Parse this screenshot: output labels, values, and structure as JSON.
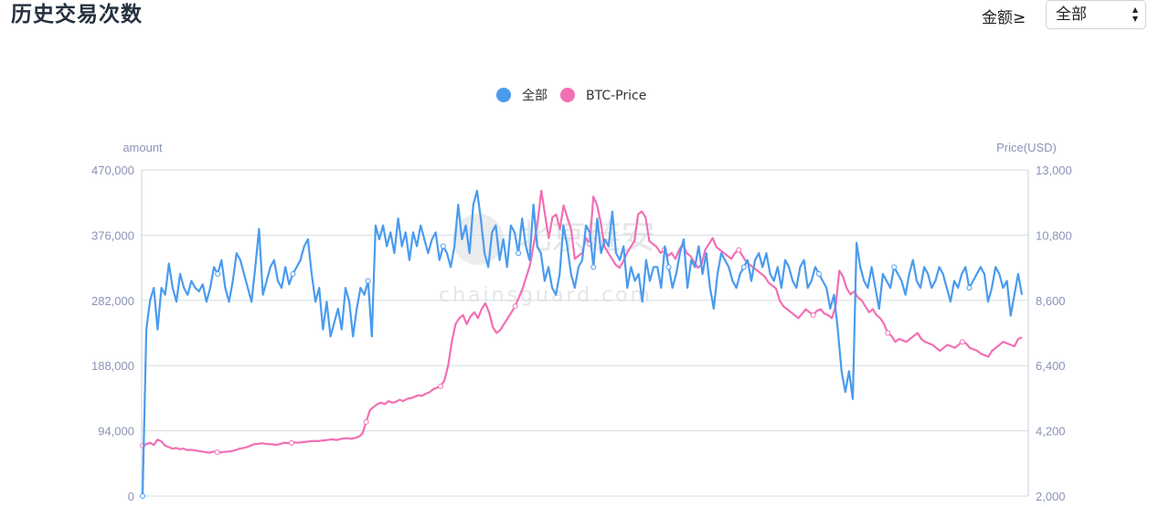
{
  "header": {
    "title": "历史交易次数",
    "filter_label": "金额≥",
    "filter_value": "全部"
  },
  "watermark": {
    "main": "北京链安",
    "sub": "chainsguard.com"
  },
  "colors": {
    "series_all": "#4a9bee",
    "series_price": "#f26fb4",
    "grid": "#d8dde6",
    "axis_text": "#8a93b8"
  },
  "chart_data": {
    "type": "line",
    "legend_position": "top-center",
    "grid": true,
    "y_left": {
      "label": "amount",
      "min": 0,
      "max": 470000,
      "ticks": [
        "0",
        "94,000",
        "188,000",
        "282,000",
        "376,000",
        "470,000"
      ]
    },
    "y_right": {
      "label": "Price(USD)",
      "min": 2000,
      "max": 13000,
      "ticks": [
        "2,000",
        "4,200",
        "6,400",
        "8,600",
        "10,800",
        "13,000"
      ]
    },
    "series": [
      {
        "name": "全部",
        "axis": "left",
        "values": [
          0,
          240000,
          282000,
          300000,
          240000,
          300000,
          290000,
          335000,
          300000,
          280000,
          320000,
          300000,
          290000,
          310000,
          300000,
          295000,
          305000,
          280000,
          300000,
          330000,
          320000,
          340000,
          300000,
          280000,
          310000,
          350000,
          340000,
          320000,
          300000,
          280000,
          330000,
          385000,
          290000,
          310000,
          330000,
          340000,
          310000,
          300000,
          330000,
          305000,
          320000,
          330000,
          340000,
          360000,
          370000,
          320000,
          280000,
          300000,
          240000,
          280000,
          230000,
          250000,
          270000,
          240000,
          300000,
          280000,
          230000,
          270000,
          300000,
          290000,
          310000,
          230000,
          390000,
          370000,
          390000,
          360000,
          380000,
          350000,
          400000,
          360000,
          380000,
          340000,
          380000,
          360000,
          390000,
          370000,
          350000,
          370000,
          380000,
          340000,
          360000,
          350000,
          330000,
          360000,
          420000,
          370000,
          390000,
          350000,
          420000,
          440000,
          400000,
          350000,
          330000,
          380000,
          390000,
          340000,
          370000,
          330000,
          390000,
          380000,
          350000,
          400000,
          360000,
          340000,
          420000,
          360000,
          350000,
          310000,
          330000,
          300000,
          290000,
          320000,
          390000,
          360000,
          320000,
          300000,
          330000,
          340000,
          390000,
          380000,
          330000,
          400000,
          350000,
          370000,
          360000,
          410000,
          350000,
          340000,
          360000,
          300000,
          330000,
          310000,
          320000,
          280000,
          340000,
          310000,
          330000,
          330000,
          300000,
          360000,
          330000,
          300000,
          320000,
          350000,
          370000,
          300000,
          340000,
          330000,
          360000,
          320000,
          350000,
          300000,
          270000,
          320000,
          350000,
          340000,
          330000,
          310000,
          300000,
          320000,
          330000,
          340000,
          310000,
          340000,
          350000,
          330000,
          350000,
          320000,
          310000,
          330000,
          300000,
          340000,
          330000,
          310000,
          300000,
          330000,
          340000,
          300000,
          310000,
          330000,
          320000,
          310000,
          300000,
          270000,
          290000,
          240000,
          180000,
          150000,
          180000,
          140000,
          365000,
          330000,
          310000,
          300000,
          330000,
          300000,
          270000,
          320000,
          310000,
          300000,
          330000,
          320000,
          310000,
          290000,
          320000,
          340000,
          310000,
          300000,
          330000,
          320000,
          300000,
          310000,
          330000,
          320000,
          300000,
          280000,
          310000,
          300000,
          320000,
          330000,
          300000,
          310000,
          320000,
          330000,
          320000,
          280000,
          300000,
          330000,
          320000,
          300000,
          310000,
          260000,
          290000,
          320000,
          290000
        ]
      },
      {
        "name": "BTC-Price",
        "axis": "right",
        "values": [
          3700,
          3750,
          3800,
          3720,
          3900,
          3850,
          3700,
          3650,
          3600,
          3620,
          3580,
          3600,
          3550,
          3560,
          3540,
          3520,
          3500,
          3480,
          3460,
          3500,
          3480,
          3470,
          3490,
          3500,
          3520,
          3550,
          3600,
          3620,
          3650,
          3700,
          3750,
          3760,
          3780,
          3760,
          3750,
          3740,
          3730,
          3760,
          3800,
          3780,
          3790,
          3810,
          3800,
          3820,
          3830,
          3850,
          3860,
          3850,
          3870,
          3880,
          3900,
          3910,
          3890,
          3920,
          3940,
          3950,
          3930,
          3960,
          4000,
          4100,
          4500,
          4900,
          5000,
          5100,
          5150,
          5100,
          5200,
          5150,
          5180,
          5250,
          5200,
          5280,
          5300,
          5350,
          5400,
          5380,
          5450,
          5500,
          5600,
          5650,
          5700,
          5900,
          6400,
          7200,
          7800,
          8000,
          8100,
          7800,
          8050,
          8200,
          8000,
          8300,
          8500,
          8200,
          7700,
          7500,
          7600,
          7800,
          8000,
          8200,
          8400,
          8700,
          9000,
          9400,
          9800,
          10500,
          11200,
          12300,
          11500,
          10700,
          11400,
          11500,
          11000,
          11800,
          11400,
          11000,
          10000,
          10100,
          10200,
          10700,
          10500,
          12100,
          11800,
          11200,
          10400,
          10200,
          10000,
          9800,
          9700,
          9900,
          10200,
          10400,
          10600,
          11500,
          11600,
          11400,
          10600,
          10500,
          10400,
          10200,
          10300,
          10100,
          10200,
          10000,
          10300,
          10500,
          10200,
          10100,
          9900,
          9700,
          9800,
          10300,
          10500,
          10700,
          10400,
          10300,
          10200,
          10100,
          10000,
          10200,
          10300,
          10100,
          9900,
          9800,
          9700,
          9600,
          9500,
          9400,
          9200,
          9100,
          9000,
          8600,
          8400,
          8300,
          8200,
          8100,
          8000,
          8150,
          8300,
          8200,
          8100,
          8250,
          8300,
          8150,
          8100,
          8000,
          8400,
          9600,
          9400,
          9000,
          8800,
          8900,
          8700,
          8600,
          8400,
          8200,
          8300,
          8100,
          8000,
          7800,
          7500,
          7400,
          7200,
          7300,
          7250,
          7200,
          7300,
          7400,
          7500,
          7300,
          7200,
          7150,
          7100,
          7000,
          6900,
          7000,
          7100,
          7050,
          7000,
          7100,
          7200,
          7150,
          7000,
          6950,
          6900,
          6800,
          6750,
          6700,
          6900,
          7000,
          7100,
          7200,
          7150,
          7100,
          7050,
          7300,
          7350
        ]
      }
    ]
  }
}
